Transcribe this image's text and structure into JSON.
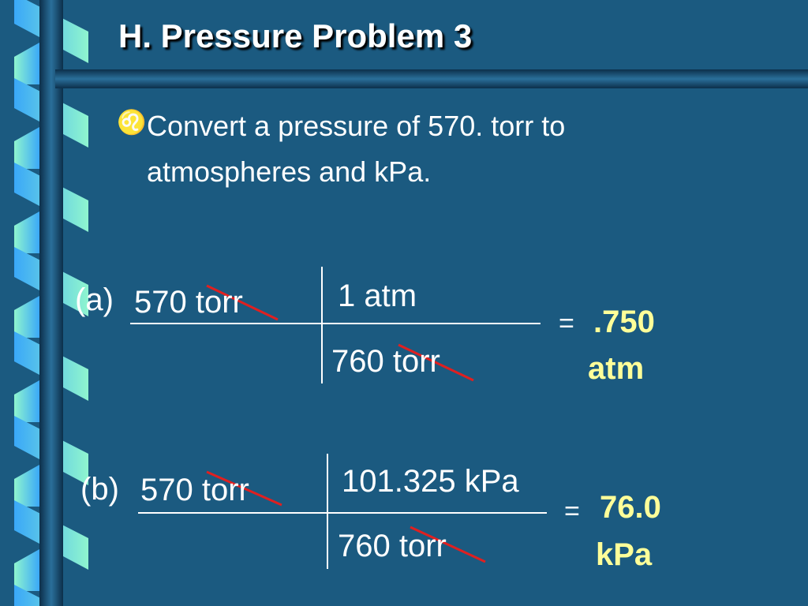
{
  "title": "H. Pressure Problem 3",
  "bullet": {
    "icon": "leo-bullet-icon",
    "line1": "Convert a pressure of 570. torr to",
    "line2": "atmospheres and kPa."
  },
  "part_a": {
    "label": "(a)",
    "given": "570 torr",
    "numerator": "1 atm",
    "denominator": "760 torr",
    "equals": "=",
    "answer_value": ".750",
    "answer_unit": "atm"
  },
  "part_b": {
    "label": "(b)",
    "given": "570 torr",
    "numerator": "101.325 kPa",
    "denominator": "760 torr",
    "equals": "=",
    "answer_value": "76.0",
    "answer_unit": "kPa"
  },
  "colors": {
    "background": "#1b5a80",
    "answer": "#ffff99",
    "strike": "#e02020"
  }
}
